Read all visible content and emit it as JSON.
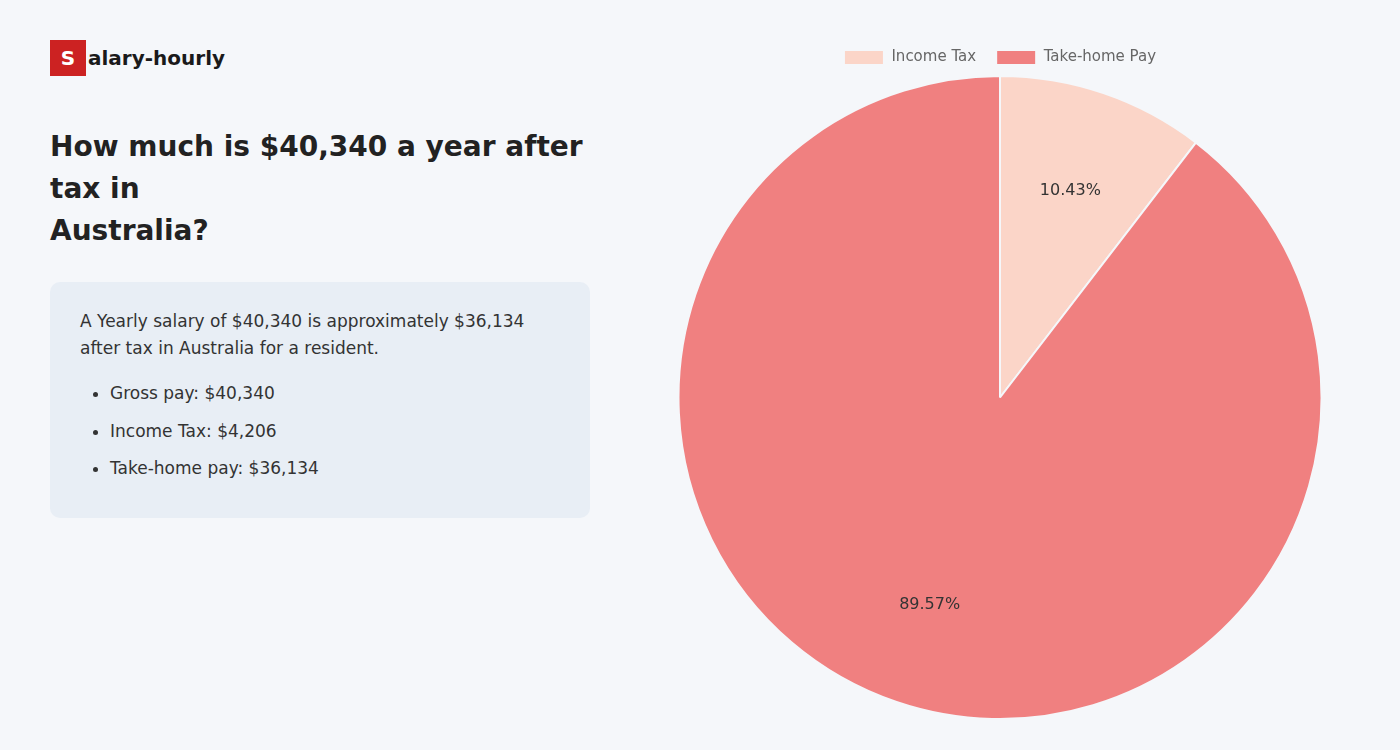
{
  "chart_data": {
    "type": "pie",
    "title": [
      "How much is $40,340 a year after tax in",
      "Australia?"
    ],
    "annotations": [
      "Salary-hourly",
      "A Yearly salary of $40,340 is approximately $36,134 after tax in Australia for a resident.",
      "Gross pay: $40,340",
      "Income Tax: $4,206",
      "Take-home pay: $36,134"
    ],
    "categories": [
      "Income Tax",
      "Take-home Pay"
    ],
    "values": [
      10.43,
      89.57
    ],
    "value_labels": [
      "10.43%",
      "89.57%"
    ],
    "colors": [
      "#fbd5c8",
      "#f08080"
    ],
    "data_labels": true,
    "legend": "top"
  }
}
